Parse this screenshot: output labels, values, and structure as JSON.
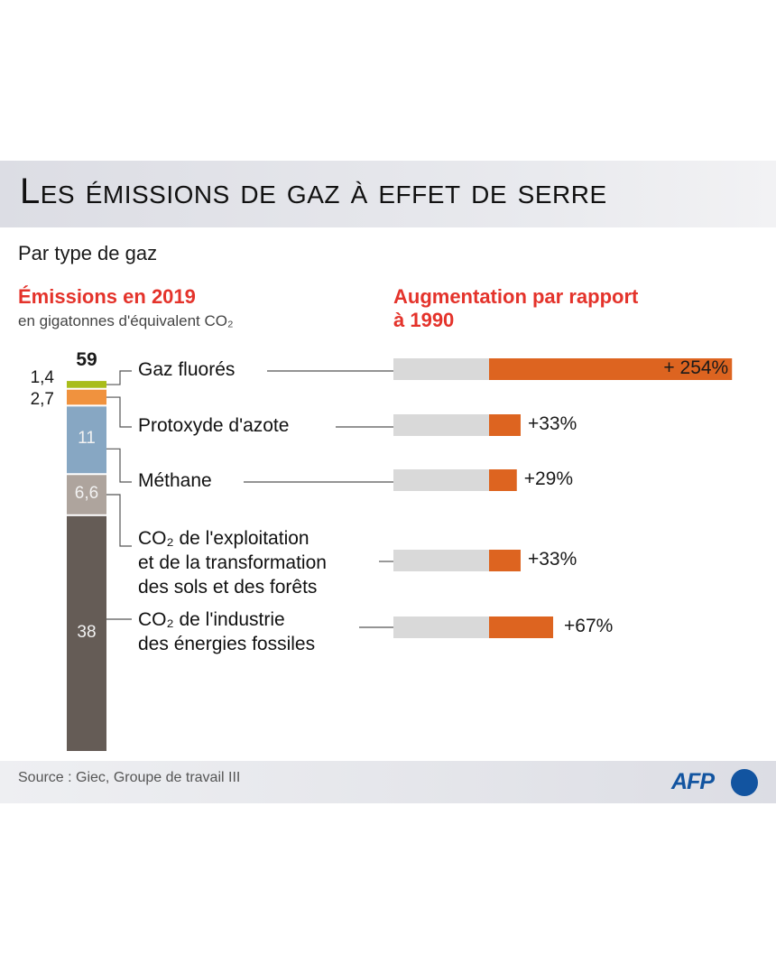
{
  "title": "Les émissions de gaz à effet de serre",
  "subtitle": "Par type de gaz",
  "left_heading": "Émissions en 2019",
  "left_note": "en gigatonnes d'équivalent CO₂",
  "right_heading_line1": "Augmentation par rapport",
  "right_heading_line2": "à 1990",
  "source": "Source : Giec, Groupe de travail III",
  "logo": "AFP",
  "chart_data": {
    "type": "bar",
    "title": "Les émissions de gaz à effet de serre",
    "total_label": "59",
    "categories": [
      "Gaz fluorés",
      "Protoxyde d'azote",
      "Méthane",
      "CO₂ de l'exploitation et de la transformation des sols et des forêts",
      "CO₂ de l'industrie des énergies fossiles"
    ],
    "category_lines": [
      [
        "Gaz fluorés"
      ],
      [
        "Protoxyde d'azote"
      ],
      [
        "Méthane"
      ],
      [
        "CO₂ de l'exploitation",
        "et de la transformation",
        "des sols et des forêts"
      ],
      [
        "CO₂ de l'industrie",
        "des énergies fossiles"
      ]
    ],
    "series": [
      {
        "name": "Émissions en 2019 (Gt éq. CO₂)",
        "type": "stacked-bar",
        "values": [
          1.4,
          2.7,
          11,
          6.6,
          38
        ],
        "labels": [
          "1,4",
          "2,7",
          "11",
          "6,6",
          "38"
        ],
        "colors": [
          "#a9bd1a",
          "#f0923e",
          "#87a7c3",
          "#aea49d",
          "#655c56"
        ]
      },
      {
        "name": "Augmentation par rapport à 1990 (%)",
        "type": "bar",
        "values": [
          254,
          33,
          29,
          33,
          67
        ],
        "labels": [
          "+ 254%",
          "+33%",
          "+29%",
          "+33%",
          "+67%"
        ],
        "baseline_color": "#d9d9d9",
        "color": "#dd6420"
      }
    ]
  }
}
